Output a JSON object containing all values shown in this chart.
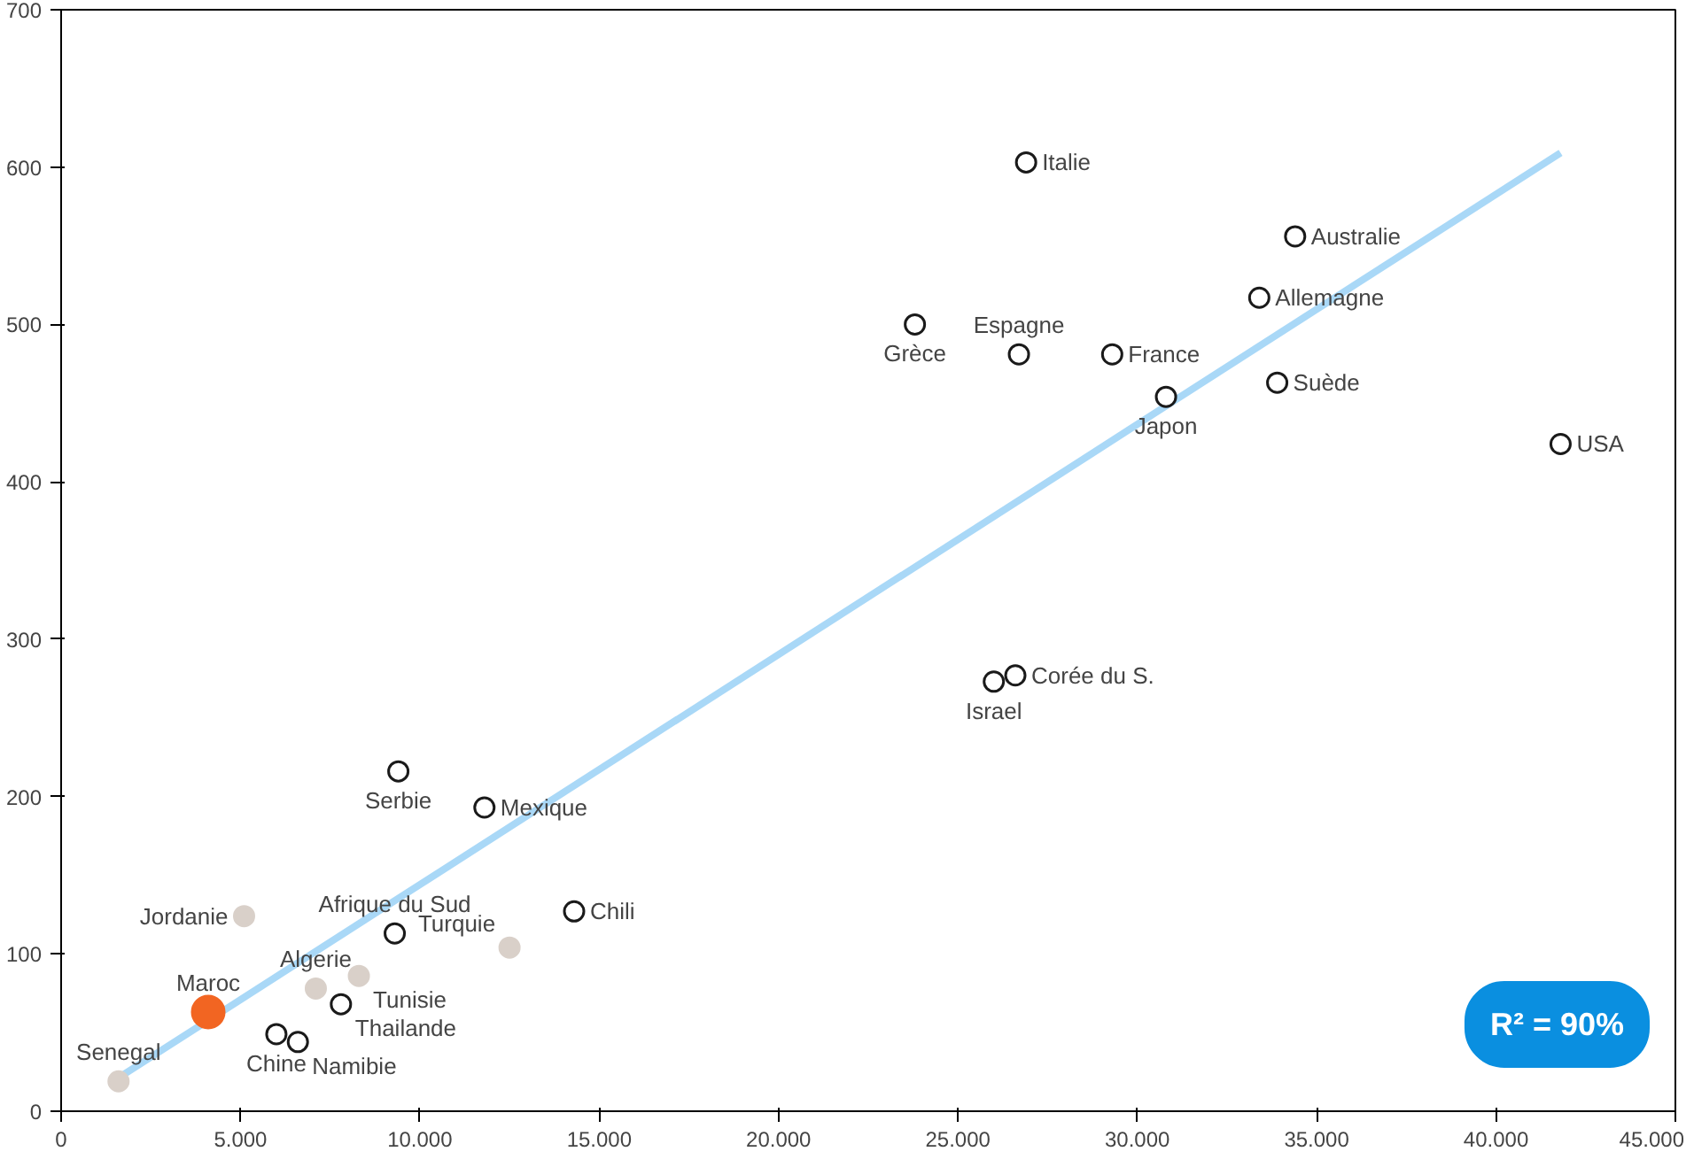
{
  "chart_data": {
    "type": "scatter",
    "xlim": [
      0,
      45000
    ],
    "ylim": [
      0,
      700
    ],
    "xticks": [
      0,
      {
        "value": 5000,
        "label": "5.000"
      },
      {
        "value": 10000,
        "label": "10.000"
      },
      {
        "value": 15000,
        "label": "15.000"
      },
      {
        "value": 20000,
        "label": "20.000"
      },
      {
        "value": 25000,
        "label": "25.000"
      },
      {
        "value": 30000,
        "label": "30.000"
      },
      {
        "value": 35000,
        "label": "35.000"
      },
      {
        "value": 40000,
        "label": "40.000"
      },
      {
        "value": 45000,
        "label": "45.000"
      }
    ],
    "yticks": [
      0,
      100,
      200,
      300,
      400,
      500,
      600,
      700
    ],
    "grid": false,
    "series": [
      {
        "type": "line",
        "color": "#a9d8f7",
        "marker": "none",
        "x": [
          1450,
          41800
        ],
        "values": [
          19,
          609
        ]
      },
      {
        "color": "#1a1a1a",
        "marker": "circle",
        "x": [
          26900,
          34400,
          33400,
          26700,
          29300,
          23800,
          30800,
          33900,
          41800,
          26600,
          26000,
          9400,
          11800,
          14300,
          9300,
          7800,
          6000,
          6600
        ],
        "values": [
          603,
          556,
          517,
          481,
          481,
          500,
          454,
          463,
          424,
          277,
          273,
          216,
          193,
          127,
          113,
          68,
          49,
          44
        ]
      },
      {
        "color": "#d9d0c9",
        "marker": "circle",
        "x": [
          5100,
          12500,
          7100,
          8300,
          1600
        ],
        "values": [
          124,
          104,
          78,
          86,
          19
        ]
      },
      {
        "color": "#f26522",
        "marker": "circle",
        "x": [
          4100
        ],
        "values": [
          63
        ]
      }
    ],
    "annotations": [
      {
        "text": "Italie",
        "x": 26900,
        "y": 603
      },
      {
        "text": "Australie",
        "x": 34400,
        "y": 556
      },
      {
        "text": "Allemagne",
        "x": 33400,
        "y": 517
      },
      {
        "text": "Espagne",
        "x": 26700,
        "y": 481
      },
      {
        "text": "France",
        "x": 29300,
        "y": 481
      },
      {
        "text": "Grèce",
        "x": 23800,
        "y": 500
      },
      {
        "text": "Japon",
        "x": 30800,
        "y": 454
      },
      {
        "text": "Suède",
        "x": 33900,
        "y": 463
      },
      {
        "text": "USA",
        "x": 41800,
        "y": 424
      },
      {
        "text": "Corée du S.",
        "x": 26600,
        "y": 277
      },
      {
        "text": "Israel",
        "x": 26000,
        "y": 273
      },
      {
        "text": "Serbie",
        "x": 9400,
        "y": 216
      },
      {
        "text": "Mexique",
        "x": 11800,
        "y": 193
      },
      {
        "text": "Chili",
        "x": 14300,
        "y": 127
      },
      {
        "text": "Afrique du Sud",
        "x": 9300,
        "y": 113
      },
      {
        "text": "Thailande",
        "x": 7800,
        "y": 68
      },
      {
        "text": "Chine",
        "x": 6000,
        "y": 49
      },
      {
        "text": "Namibie",
        "x": 6600,
        "y": 44
      },
      {
        "text": "Jordanie",
        "x": 5100,
        "y": 124
      },
      {
        "text": "Turquie",
        "x": 12500,
        "y": 104
      },
      {
        "text": "Algerie",
        "x": 7100,
        "y": 78
      },
      {
        "text": "Tunisie",
        "x": 8300,
        "y": 86
      },
      {
        "text": "Senegal",
        "x": 1600,
        "y": 19
      },
      {
        "text": "Maroc",
        "x": 4100,
        "y": 63
      },
      "R² = 90%"
    ]
  }
}
